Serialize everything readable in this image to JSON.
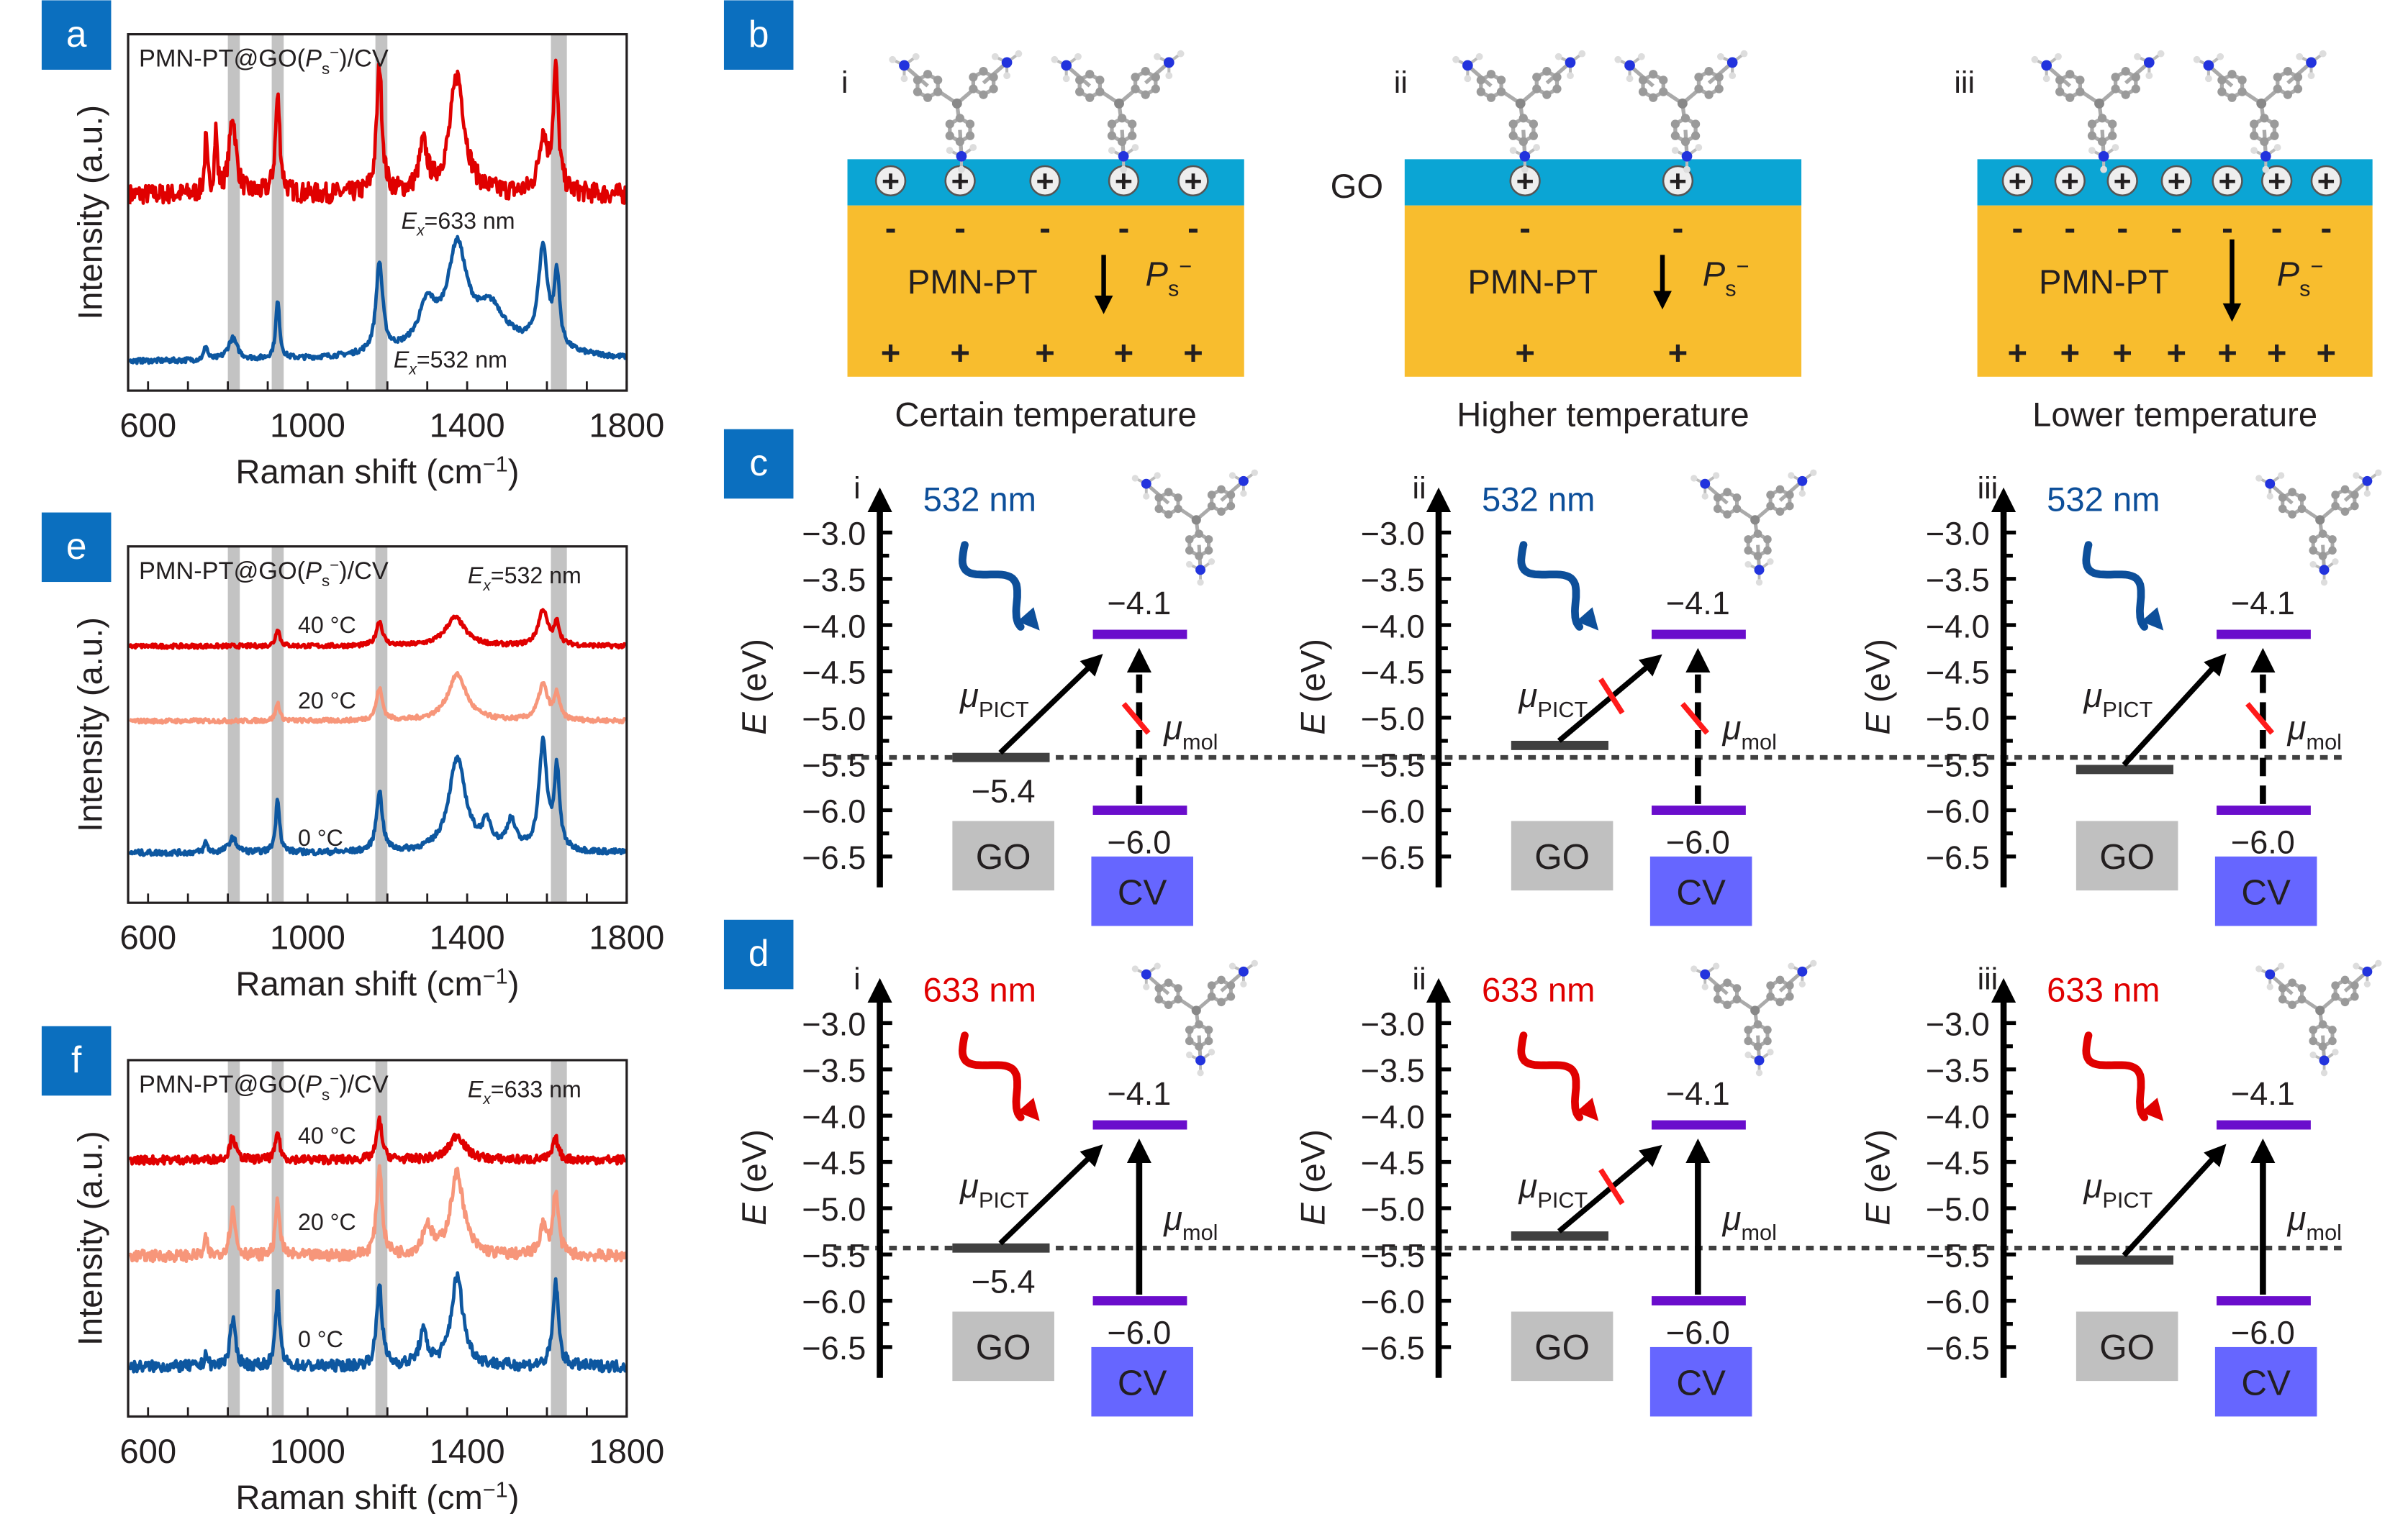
{
  "panel_labels": {
    "a": "a",
    "b": "b",
    "c": "c",
    "d": "d",
    "e": "e",
    "f": "f"
  },
  "colors": {
    "label_box": "#0b6fbf",
    "band": "#c3c3c3",
    "red": "#e00000",
    "salmon": "#f7967a",
    "blue": "#0d57a0",
    "go_layer": "#0ba5d4",
    "pmnpt": "#f8bd2e",
    "level": "#6a0dcc",
    "go_bar": "#404040",
    "go_box": "#c0c0c0",
    "cv_box": "#6666ff",
    "wave_532": "#0d4f9a",
    "wave_633": "#e00000"
  },
  "chart_data": [
    {
      "panel": "a",
      "type": "line",
      "title": {
        "pre": "PMN-PT@GO(",
        "P": "P",
        "s": "s",
        "sup": "−",
        "post": ")/CV"
      },
      "xlabel": {
        "main": "Raman shift (cm",
        "sup": "−1",
        "close": ")"
      },
      "ylabel": "Intensity (a.u.)",
      "xlim": [
        550,
        1800
      ],
      "ylim": [
        0,
        10
      ],
      "x_ticks": [
        "600",
        "1000",
        "1400",
        "1800"
      ],
      "highlight_bands": [
        [
          800,
          830
        ],
        [
          910,
          940
        ],
        [
          1170,
          1200
        ],
        [
          1610,
          1650
        ]
      ],
      "series": [
        {
          "label": {
            "E": "E",
            "x": "x",
            "rest": "=633 nm"
          },
          "color": "#e00000",
          "baseline": 5.5,
          "noise": 0.28,
          "peaks": [
            [
              745,
              1.5,
              4
            ],
            [
              770,
              1.7,
              4
            ],
            [
              812,
              2.2,
              10
            ],
            [
              925,
              2.7,
              7
            ],
            [
              1180,
              3.6,
              8
            ],
            [
              1290,
              1.3,
              12
            ],
            [
              1375,
              3.3,
              22
            ],
            [
              1590,
              1.6,
              12
            ],
            [
              1622,
              3.4,
              8
            ]
          ]
        },
        {
          "label": {
            "E": "E",
            "x": "x",
            "rest": "=532 nm"
          },
          "color": "#0d57a0",
          "baseline": 0.8,
          "noise": 0.07,
          "peaks": [
            [
              745,
              0.4,
              5
            ],
            [
              812,
              0.6,
              14
            ],
            [
              925,
              1.6,
              6
            ],
            [
              1180,
              2.5,
              10
            ],
            [
              1300,
              1.1,
              25
            ],
            [
              1375,
              2.6,
              28
            ],
            [
              1460,
              0.9,
              40
            ],
            [
              1590,
              2.8,
              14
            ],
            [
              1625,
              2.0,
              8
            ],
            [
              1420,
              0.6,
              180
            ]
          ]
        }
      ]
    },
    {
      "panel": "e",
      "type": "line",
      "title": {
        "pre": "PMN-PT@GO(",
        "P": "P",
        "s": "s",
        "sup": "−",
        "post": ")/CV"
      },
      "annotation": {
        "E": "E",
        "x": "x",
        "rest": "=532 nm"
      },
      "xlabel": {
        "main": "Raman shift (cm",
        "sup": "−1",
        "close": ")"
      },
      "ylabel": "Intensity (a.u.)",
      "xlim": [
        550,
        1800
      ],
      "ylim": [
        0,
        10
      ],
      "x_ticks": [
        "600",
        "1000",
        "1400",
        "1800"
      ],
      "highlight_bands": [
        [
          800,
          830
        ],
        [
          910,
          940
        ],
        [
          1170,
          1200
        ],
        [
          1610,
          1650
        ]
      ],
      "series": [
        {
          "label": "40 °C",
          "color": "#e00000",
          "baseline": 7.2,
          "noise": 0.06,
          "peaks": [
            [
              925,
              0.5,
              6
            ],
            [
              1180,
              0.7,
              9
            ],
            [
              1370,
              0.8,
              30
            ],
            [
              1590,
              1.0,
              14
            ],
            [
              1625,
              0.6,
              8
            ]
          ]
        },
        {
          "label": "20 °C",
          "color": "#f7967a",
          "baseline": 5.1,
          "noise": 0.06,
          "peaks": [
            [
              925,
              0.5,
              6
            ],
            [
              1180,
              0.9,
              9
            ],
            [
              1375,
              1.3,
              28
            ],
            [
              1590,
              1.0,
              14
            ],
            [
              1625,
              0.7,
              8
            ]
          ]
        },
        {
          "label": "0 °C",
          "color": "#0d57a0",
          "baseline": 1.4,
          "noise": 0.08,
          "peaks": [
            [
              745,
              0.3,
              5
            ],
            [
              812,
              0.4,
              12
            ],
            [
              925,
              1.5,
              6
            ],
            [
              1180,
              1.7,
              9
            ],
            [
              1375,
              2.6,
              26
            ],
            [
              1450,
              0.7,
              14
            ],
            [
              1510,
              0.8,
              14
            ],
            [
              1590,
              3.0,
              12
            ],
            [
              1625,
              2.2,
              8
            ]
          ]
        }
      ]
    },
    {
      "panel": "f",
      "type": "line",
      "title": {
        "pre": "PMN-PT@GO(",
        "P": "P",
        "s": "s",
        "sup": "−",
        "post": ")/CV"
      },
      "annotation": {
        "E": "E",
        "x": "x",
        "rest": "=633 nm"
      },
      "xlabel": {
        "main": "Raman shift (cm",
        "sup": "−1",
        "close": ")"
      },
      "ylabel": "Intensity (a.u.)",
      "xlim": [
        550,
        1800
      ],
      "ylim": [
        0,
        10
      ],
      "x_ticks": [
        "600",
        "1000",
        "1400",
        "1800"
      ],
      "highlight_bands": [
        [
          800,
          830
        ],
        [
          910,
          940
        ],
        [
          1170,
          1200
        ],
        [
          1610,
          1650
        ]
      ],
      "series": [
        {
          "label": "40 °C",
          "color": "#e00000",
          "baseline": 7.2,
          "noise": 0.12,
          "peaks": [
            [
              812,
              0.7,
              8
            ],
            [
              925,
              0.8,
              6
            ],
            [
              1180,
              1.1,
              8
            ],
            [
              1375,
              0.7,
              22
            ],
            [
              1622,
              0.6,
              8
            ]
          ]
        },
        {
          "label": "20 °C",
          "color": "#f7967a",
          "baseline": 4.5,
          "noise": 0.16,
          "peaks": [
            [
              745,
              0.5,
              4
            ],
            [
              812,
              1.3,
              8
            ],
            [
              925,
              1.6,
              6
            ],
            [
              1180,
              2.5,
              8
            ],
            [
              1300,
              0.8,
              14
            ],
            [
              1375,
              2.3,
              20
            ],
            [
              1590,
              0.8,
              10
            ],
            [
              1622,
              1.8,
              8
            ]
          ]
        },
        {
          "label": "0 °C",
          "color": "#0d57a0",
          "baseline": 1.4,
          "noise": 0.16,
          "peaks": [
            [
              745,
              0.4,
              4
            ],
            [
              812,
              1.3,
              8
            ],
            [
              925,
              2.1,
              6
            ],
            [
              1180,
              2.3,
              8
            ],
            [
              1290,
              0.9,
              12
            ],
            [
              1375,
              2.5,
              18
            ],
            [
              1622,
              2.4,
              8
            ]
          ]
        }
      ]
    }
  ],
  "schematic": {
    "go_label": "GO",
    "substrate": "PMN-PT",
    "ps": {
      "P": "P",
      "s": "s",
      "sup": "−"
    },
    "plus": "+",
    "minus": "-",
    "panels": [
      {
        "roman": "i",
        "caption": "Certain temperature",
        "surface_charges": 5
      },
      {
        "roman": "ii",
        "caption": "Higher temperature",
        "surface_charges": 2
      },
      {
        "roman": "iii",
        "caption": "Lower temperature",
        "surface_charges": 7
      }
    ]
  },
  "energy": {
    "axis_label": {
      "E": "E",
      "unit": " (eV)"
    },
    "ticks": [
      -3.0,
      -3.5,
      -4.0,
      -4.5,
      -5.0,
      -5.5,
      -6.0,
      -6.5
    ],
    "tick_labels": [
      "−3.0",
      "−3.5",
      "−4.0",
      "−4.5",
      "−5.0",
      "−5.5",
      "−6.0",
      "−6.5"
    ],
    "lumo": {
      "value": -4.1,
      "label": "−4.1"
    },
    "homo": {
      "value": -6.0,
      "label": "−6.0"
    },
    "go_label_value": "−5.4",
    "go_box": "GO",
    "cv_box": "CV",
    "mu": "μ",
    "pict": "PICT",
    "mol": "mol",
    "fermi_level": -5.43,
    "rows": [
      {
        "panel": "c",
        "wavelength": "532 nm",
        "color": "#0d4f9a",
        "mol_blocked": true,
        "panels": [
          {
            "roman": "i",
            "go_level": -5.43,
            "show_go_label": true,
            "pict_blocked": false
          },
          {
            "roman": "ii",
            "go_level": -5.3,
            "show_go_label": false,
            "pict_blocked": true
          },
          {
            "roman": "iii",
            "go_level": -5.56,
            "show_go_label": false,
            "pict_blocked": false
          }
        ]
      },
      {
        "panel": "d",
        "wavelength": "633 nm",
        "color": "#e00000",
        "mol_blocked": false,
        "panels": [
          {
            "roman": "i",
            "go_level": -5.43,
            "show_go_label": true,
            "pict_blocked": false
          },
          {
            "roman": "ii",
            "go_level": -5.3,
            "show_go_label": false,
            "pict_blocked": true
          },
          {
            "roman": "iii",
            "go_level": -5.56,
            "show_go_label": false,
            "pict_blocked": false
          }
        ]
      }
    ]
  }
}
